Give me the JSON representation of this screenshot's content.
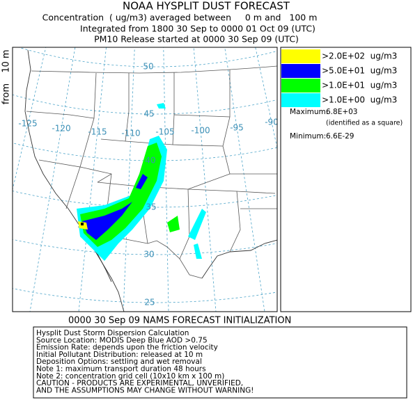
{
  "header": {
    "title": "NOAA HYSPLIT DUST FORECAST",
    "lines": [
      "Concentration  ( ug/m3) averaged between     0 m and   100 m",
      "Integrated from 1800 30 Sep to 0000 01 Oct 09 (UTC)",
      "PM10 Release started at 0000 30 Sep 09 (UTC)"
    ]
  },
  "side_label": {
    "top": "10 m",
    "bottom": "from"
  },
  "map": {
    "lat_labels": [
      50,
      45,
      40,
      35,
      30,
      25
    ],
    "lon_labels": [
      -125,
      -120,
      -115,
      -110,
      -105,
      -100,
      -95,
      -90
    ]
  },
  "legend": {
    "entries": [
      {
        "label": ">2.0E+02  ug/m3",
        "color": "#ffff00"
      },
      {
        "label": ">5.0E+01  ug/m3",
        "color": "#0000ff"
      },
      {
        "label": ">1.0E+01  ug/m3",
        "color": "#00ff00"
      },
      {
        "label": ">1.0E+00  ug/m3",
        "color": "#00ffff"
      }
    ],
    "maximum_label": "Maximum:",
    "maximum_value": "6.8E+03",
    "maximum_note": "(identified as a square)",
    "minimum_label": "Minimum:",
    "minimum_value": "6.6E-29"
  },
  "initialization": "0000 30 Sep 09 NAMS FORECAST INITIALIZATION",
  "notes": [
    "Hysplit Dust Storm Dispersion Calculation",
    "Source Location: MODIS Deep Blue AOD >0.75",
    "Emission Rate: depends upon the friction velocity",
    "Initial Pollutant Distribution: released at 10 m",
    "Deposition Options: settling and wet removal",
    "Note 1: maximum transport duration 48 hours",
    "Note 2: concentration grid cell (10x10 km x 100 m)",
    "CAUTION - PRODUCTS ARE EXPERIMENTAL, UNVERIFIED,",
    "AND THE ASSUMPTIONS MAY CHANGE WITHOUT WARNING!"
  ]
}
